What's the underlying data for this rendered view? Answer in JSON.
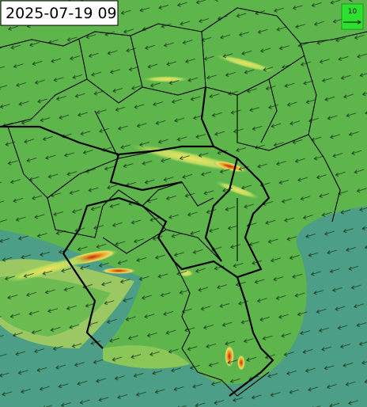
{
  "map": {
    "timestamp": "2025-07-19 09",
    "legend": {
      "label": "10"
    }
  }
}
